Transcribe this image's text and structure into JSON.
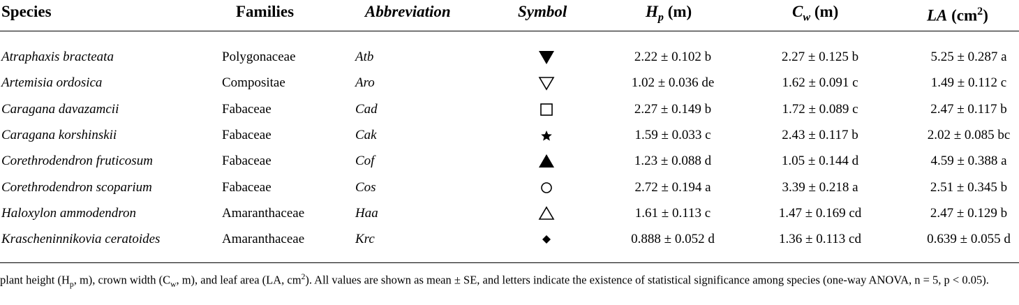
{
  "headers": {
    "species": "Species",
    "families": "Families",
    "abbreviation": "Abbreviation",
    "symbol": "Symbol",
    "hp_main": "H",
    "hp_sub": "p",
    "hp_unit": " (m)",
    "cw_main": "C",
    "cw_sub": "w",
    "cw_unit": " (m)",
    "la_main": "LA",
    "la_unit": " (cm",
    "la_sup": "2",
    "la_close": ")"
  },
  "rows": [
    {
      "species": "Atraphaxis bracteata",
      "family": "Polygonaceae",
      "abbr": "Atb",
      "symbol": "filled-down-triangle",
      "hp": "2.22 ± 0.102 b",
      "cw": "2.27 ± 0.125 b",
      "la": "5.25 ± 0.287 a"
    },
    {
      "species": "Artemisia ordosica",
      "family": "Compositae",
      "abbr": "Aro",
      "symbol": "open-down-triangle",
      "hp": "1.02 ± 0.036 de",
      "cw": "1.62 ± 0.091 c",
      "la": "1.49 ± 0.112 c"
    },
    {
      "species": "Caragana davazamcii",
      "family": "Fabaceae",
      "abbr": "Cad",
      "symbol": "open-square",
      "hp": "2.27 ± 0.149 b",
      "cw": "1.72 ± 0.089 c",
      "la": "2.47 ± 0.117 b"
    },
    {
      "species": "Caragana korshinskii",
      "family": "Fabaceae",
      "abbr": "Cak",
      "symbol": "filled-star",
      "hp": "1.59 ± 0.033 c",
      "cw": "2.43 ± 0.117 b",
      "la": "2.02 ± 0.085 bc"
    },
    {
      "species": "Corethrodendron fruticosum",
      "family": "Fabaceae",
      "abbr": "Cof",
      "symbol": "filled-up-triangle",
      "hp": "1.23 ± 0.088 d",
      "cw": "1.05 ± 0.144 d",
      "la": "4.59 ± 0.388 a"
    },
    {
      "species": "Corethrodendron scoparium",
      "family": "Fabaceae",
      "abbr": "Cos",
      "symbol": "open-circle",
      "hp": "2.72 ± 0.194 a",
      "cw": "3.39 ± 0.218 a",
      "la": "2.51 ± 0.345 b"
    },
    {
      "species": "Haloxylon ammodendron",
      "family": "Amaranthaceae",
      "abbr": "Haa",
      "symbol": "open-up-triangle",
      "hp": "1.61 ± 0.113 c",
      "cw": "1.47 ± 0.169 cd",
      "la": "2.47 ± 0.129 b"
    },
    {
      "species": "Krascheninnikovia ceratoides",
      "family": "Amaranthaceae",
      "abbr": "Krc",
      "symbol": "filled-diamond",
      "hp": "0.888 ± 0.052 d",
      "cw": "1.36 ± 0.113 cd",
      "la": "0.639 ± 0.055 d"
    }
  ],
  "footnote": {
    "t1": "plant height (H",
    "s1": "p",
    "t2": ", m), crown width (C",
    "s2": "w",
    "t3": ", m), and leaf area (LA, cm",
    "s3": "2",
    "t4": "). All values are shown as mean ± SE, and letters indicate the existence of statistical significance among species (one-way ANOVA, n = 5, p < 0.05)."
  }
}
